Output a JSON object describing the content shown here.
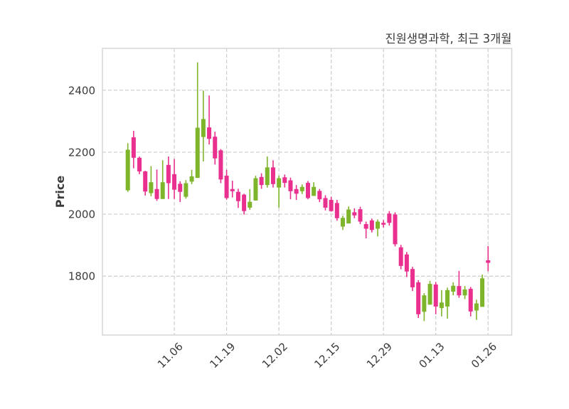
{
  "title": "진원생명과학, 최근 3개월",
  "y_axis": {
    "label": "Price",
    "tick_labels": [
      "1800",
      "2000",
      "2200",
      "2400"
    ],
    "ticks": [
      1800,
      2000,
      2200,
      2400
    ],
    "range": [
      1610,
      2535
    ]
  },
  "x_axis": {
    "tick_labels": [
      "11.06",
      "11.19",
      "12.02",
      "12.15",
      "12.29",
      "01.13",
      "01.26"
    ],
    "tick_indices": [
      8,
      17,
      26,
      35,
      44,
      53,
      62
    ]
  },
  "style": {
    "up_color": "#7EB52B",
    "down_color": "#E9308F",
    "grid_color": "#cccccc",
    "spine_color": "#d5d5d5",
    "text_color": "#3b3b3b",
    "background": "#ffffff"
  },
  "chart_data": {
    "type": "candlestick",
    "title": "진원생명과학, 최근 3개월",
    "xlabel": "",
    "ylabel": "Price",
    "ylim": [
      1610,
      2535
    ],
    "grid": "dashed",
    "columns": [
      "open",
      "high",
      "low",
      "close"
    ],
    "candles": [
      [
        2077,
        2229,
        2072,
        2208
      ],
      [
        2248,
        2269,
        2148,
        2182
      ],
      [
        2182,
        2186,
        2129,
        2138
      ],
      [
        2138,
        2140,
        2060,
        2073
      ],
      [
        2068,
        2155,
        2058,
        2103
      ],
      [
        2081,
        2144,
        2043,
        2049
      ],
      [
        2049,
        2174,
        2049,
        2103
      ],
      [
        2159,
        2186,
        2049,
        2100
      ],
      [
        2129,
        2178,
        2049,
        2079
      ],
      [
        2098,
        2106,
        2039,
        2072
      ],
      [
        2056,
        2110,
        2050,
        2100
      ],
      [
        2105,
        2143,
        2097,
        2122
      ],
      [
        2117,
        2490,
        2117,
        2279
      ],
      [
        2249,
        2399,
        2170,
        2307
      ],
      [
        2280,
        2383,
        2225,
        2243
      ],
      [
        2250,
        2266,
        2160,
        2180
      ],
      [
        2206,
        2210,
        2100,
        2112
      ],
      [
        2124,
        2143,
        2047,
        2052
      ],
      [
        2081,
        2108,
        2054,
        2074
      ],
      [
        2072,
        2082,
        2020,
        2042
      ],
      [
        2063,
        2066,
        1999,
        2010
      ],
      [
        2021,
        2081,
        2014,
        2040
      ],
      [
        2044,
        2124,
        2044,
        2116
      ],
      [
        2120,
        2132,
        2082,
        2094
      ],
      [
        2094,
        2186,
        2086,
        2151
      ],
      [
        2151,
        2174,
        2086,
        2097
      ],
      [
        2086,
        2124,
        2021,
        2116
      ],
      [
        2119,
        2128,
        2086,
        2101
      ],
      [
        2109,
        2118,
        2048,
        2074
      ],
      [
        2081,
        2094,
        2046,
        2066
      ],
      [
        2074,
        2096,
        2065,
        2088
      ],
      [
        2101,
        2107,
        2048,
        2052
      ],
      [
        2059,
        2103,
        2059,
        2088
      ],
      [
        2075,
        2081,
        2039,
        2048
      ],
      [
        2052,
        2061,
        2012,
        2021
      ],
      [
        2046,
        2056,
        2008,
        2010
      ],
      [
        2036,
        2046,
        1979,
        1987
      ],
      [
        1960,
        1995,
        1949,
        1988
      ],
      [
        1970,
        2025,
        1970,
        2015
      ],
      [
        2006,
        2019,
        1987,
        1996
      ],
      [
        2016,
        2024,
        1968,
        1976
      ],
      [
        1968,
        1976,
        1922,
        1953
      ],
      [
        1980,
        1986,
        1941,
        1949
      ],
      [
        1953,
        1983,
        1928,
        1976
      ],
      [
        1972,
        1981,
        1957,
        1966
      ],
      [
        2002,
        2010,
        1963,
        1972
      ],
      [
        1999,
        2006,
        1896,
        1903
      ],
      [
        1893,
        1901,
        1822,
        1833
      ],
      [
        1870,
        1878,
        1797,
        1815
      ],
      [
        1823,
        1830,
        1752,
        1764
      ],
      [
        1780,
        1787,
        1665,
        1677
      ],
      [
        1685,
        1745,
        1655,
        1738
      ],
      [
        1708,
        1785,
        1708,
        1775
      ],
      [
        1773,
        1781,
        1677,
        1702
      ],
      [
        1697,
        1755,
        1670,
        1715
      ],
      [
        1702,
        1763,
        1663,
        1755
      ],
      [
        1750,
        1780,
        1738,
        1769
      ],
      [
        1768,
        1817,
        1730,
        1738
      ],
      [
        1738,
        1768,
        1726,
        1757
      ],
      [
        1759,
        1765,
        1670,
        1686
      ],
      [
        1689,
        1724,
        1659,
        1712
      ],
      [
        1701,
        1805,
        1701,
        1793
      ],
      [
        1851,
        1897,
        1816,
        1843
      ]
    ]
  }
}
